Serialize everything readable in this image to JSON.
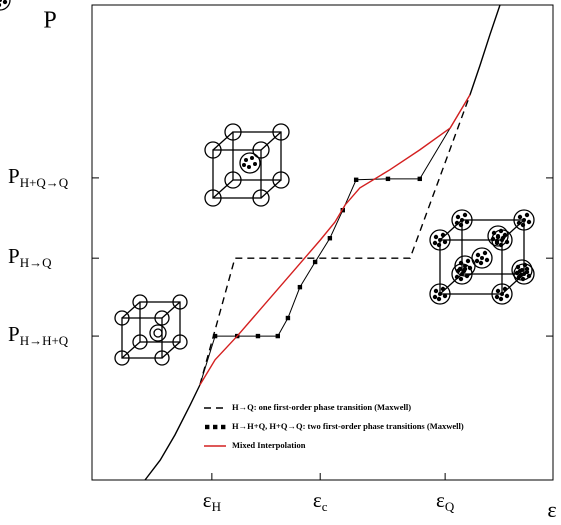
{
  "chart_data": {
    "type": "line",
    "xlabel": "ε",
    "ylabel": "P",
    "xlim": [
      0,
      1
    ],
    "ylim": [
      0,
      1
    ],
    "xticks": [
      {
        "value": 0.26,
        "label": "εH"
      },
      {
        "value": 0.495,
        "label": "εc"
      },
      {
        "value": 0.766,
        "label": "εQ"
      }
    ],
    "yticks": [
      {
        "value": 0.303,
        "label": "PH→H+Q"
      },
      {
        "value": 0.467,
        "label": "PH→Q"
      },
      {
        "value": 0.636,
        "label": "PH+Q→Q"
      }
    ],
    "legend": "lower right",
    "series": [
      {
        "color": "#000000",
        "dash": "solid",
        "x": [
          0.115,
          0.148,
          0.18,
          0.213,
          0.234
        ],
        "values": [
          0,
          0.042,
          0.095,
          0.158,
          0.2
        ]
      },
      {
        "color": "#000000",
        "dash": "solid",
        "x": [
          0.82,
          0.842,
          0.863,
          0.885
        ],
        "values": [
          0.811,
          0.874,
          0.937,
          1.0
        ]
      },
      {
        "name": "H→Q: one first-order phase transition (Maxwell)",
        "color": "#000000",
        "dash": "dashed",
        "x": [
          0.234,
          0.31,
          0.69,
          0.82
        ],
        "values": [
          0.2,
          0.467,
          0.467,
          0.811
        ]
      },
      {
        "name": "H→H+Q, H+Q→Q: two first-order phase transitions (Maxwell)",
        "color": "#000000",
        "dash": "dotted",
        "markers": true,
        "x": [
          0.234,
          0.267,
          0.315,
          0.36,
          0.403,
          0.425,
          0.451,
          0.484,
          0.516,
          0.544,
          0.573,
          0.642,
          0.711,
          0.82
        ],
        "values": [
          0.2,
          0.303,
          0.303,
          0.303,
          0.303,
          0.341,
          0.406,
          0.459,
          0.509,
          0.568,
          0.632,
          0.634,
          0.634,
          0.811
        ]
      },
      {
        "name": "Mixed Interpolation",
        "color": "#d42020",
        "dash": "solid",
        "x": [
          0.234,
          0.267,
          0.315,
          0.364,
          0.43,
          0.495,
          0.527,
          0.549,
          0.581,
          0.646,
          0.711,
          0.777,
          0.82
        ],
        "values": [
          0.2,
          0.253,
          0.303,
          0.358,
          0.432,
          0.505,
          0.543,
          0.579,
          0.615,
          0.653,
          0.695,
          0.741,
          0.811
        ]
      }
    ]
  }
}
